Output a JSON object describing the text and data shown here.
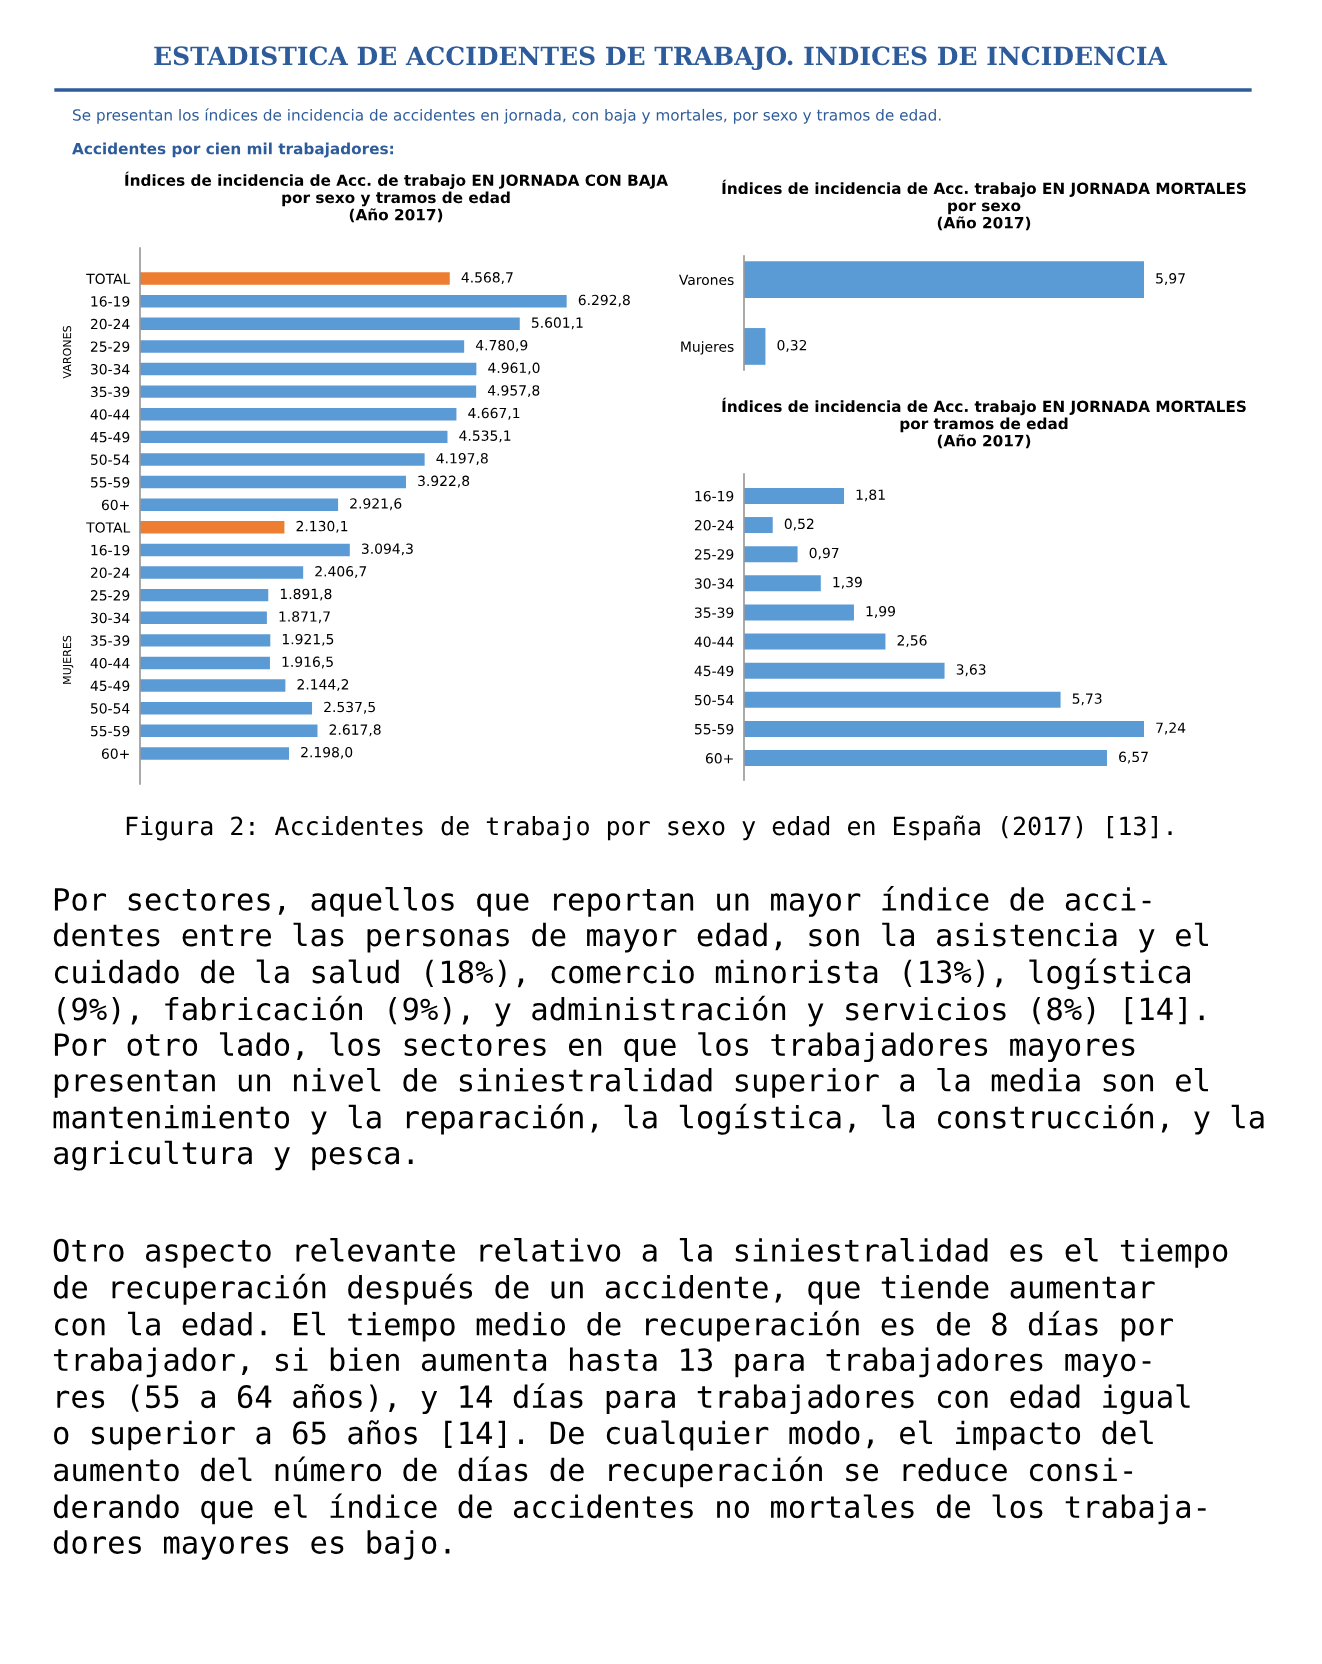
{
  "chart_data": [
    {
      "type": "bar",
      "orientation": "horizontal",
      "title": "Índices de incidencia de Acc. de trabajo EN JORNADA CON BAJA\npor sexo y tramos de edad\n(Año 2017)",
      "tick_labels": "y",
      "categories": [
        "TOTAL",
        "16-19",
        "20-24",
        "25-29",
        "30-34",
        "35-39",
        "40-44",
        "45-49",
        "50-54",
        "55-59",
        "60+",
        "TOTAL",
        "16-19",
        "20-24",
        "25-29",
        "30-34",
        "35-39",
        "40-44",
        "45-49",
        "50-54",
        "55-59",
        "60+"
      ],
      "values": [
        4568.7,
        6292.8,
        5601.1,
        4780.9,
        4961.0,
        4957.8,
        4667.1,
        4535.1,
        4197.8,
        3922.8,
        2921.6,
        2130.1,
        3094.3,
        2406.7,
        1891.8,
        1871.7,
        1921.5,
        1916.5,
        2144.2,
        2537.5,
        2617.8,
        2198.0
      ],
      "value_labels": [
        "4.568,7",
        "6.292,8",
        "5.601,1",
        "4.780,9",
        "4.961,0",
        "4.957,8",
        "4.667,1",
        "4.535,1",
        "4.197,8",
        "3.922,8",
        "2.921,6",
        "2.130,1",
        "3.094,3",
        "2.406,7",
        "1.891,8",
        "1.871,7",
        "1.921,5",
        "1.916,5",
        "2.144,2",
        "2.537,5",
        "2.617,8",
        "2.198,0"
      ],
      "colors": [
        "#ed7d31",
        "#5b9bd5",
        "#5b9bd5",
        "#5b9bd5",
        "#5b9bd5",
        "#5b9bd5",
        "#5b9bd5",
        "#5b9bd5",
        "#5b9bd5",
        "#5b9bd5",
        "#5b9bd5",
        "#ed7d31",
        "#5b9bd5",
        "#5b9bd5",
        "#5b9bd5",
        "#5b9bd5",
        "#5b9bd5",
        "#5b9bd5",
        "#5b9bd5",
        "#5b9bd5",
        "#5b9bd5",
        "#5b9bd5"
      ],
      "annotations": [
        "ESTADISTICA DE ACCIDENTES DE TRABAJO. INDICES DE INCIDENCIA",
        "Se presentan los índices de incidencia de accidentes en jornada, con baja y mortales, por sexo y tramos de edad.",
        "Accidentes por cien mil trabajadores:",
        "VARONES",
        "MUJERES",
        "Figura 2: Accidentes de trabajo por sexo y edad en España (2017) [13].",
        "Por sectores, aquellos que reportan un mayor índice de acci-\ndentes entre las personas de mayor edad, son la asistencia y el\ncuidado de la salud (18%), comercio minorista (13%), logística\n(9%), fabricación (9%), y administración y servicios (8%) [14].\nPor otro lado, los sectores en que los trabajadores mayores\npresentan un nivel de siniestralidad superior a la media son el\nmantenimiento y la reparación, la logística, la construcción, y la\nagricultura y pesca.",
        "Otro aspecto relevante relativo a la siniestralidad es el tiempo\nde recuperación después de un accidente, que tiende aumentar\ncon la edad. El tiempo medio de recuperación es de 8 días por\ntrabajador, si bien aumenta hasta 13 para trabajadores mayo-\nres (55 a 64 años), y 14 días para trabajadores con edad igual\no superior a 65 años [14]. De cualquier modo, el impacto del\naumento del número de días de recuperación se reduce consi-\nderando que el índice de accidentes no mortales de los trabaja-\ndores mayores es bajo."
      ]
    },
    {
      "type": "bar",
      "orientation": "horizontal",
      "title": "Índices de incidencia de Acc. trabajo EN JORNADA MORTALES\npor sexo\n(Año 2017)",
      "tick_labels": "y",
      "categories": [
        "Varones",
        "Mujeres"
      ],
      "values": [
        5.97,
        0.32
      ],
      "value_labels": [
        "5,97",
        "0,32"
      ],
      "colors": [
        "#5b9bd5",
        "#5b9bd5"
      ]
    },
    {
      "type": "bar",
      "orientation": "horizontal",
      "title": "Índices de incidencia de Acc. trabajo EN JORNADA MORTALES\npor tramos de edad\n(Año 2017)",
      "tick_labels": "y",
      "categories": [
        "16-19",
        "20-24",
        "25-29",
        "30-34",
        "35-39",
        "40-44",
        "45-49",
        "50-54",
        "55-59",
        "60+"
      ],
      "values": [
        1.81,
        0.52,
        0.97,
        1.39,
        1.99,
        2.56,
        3.63,
        5.73,
        7.24,
        6.57
      ],
      "value_labels": [
        "1,81",
        "0,52",
        "0,97",
        "1,39",
        "1,99",
        "2,56",
        "3,63",
        "5,73",
        "7,24",
        "6,57"
      ],
      "colors": [
        "#5b9bd5",
        "#5b9bd5",
        "#5b9bd5",
        "#5b9bd5",
        "#5b9bd5",
        "#5b9bd5",
        "#5b9bd5",
        "#5b9bd5",
        "#5b9bd5",
        "#5b9bd5"
      ]
    }
  ]
}
